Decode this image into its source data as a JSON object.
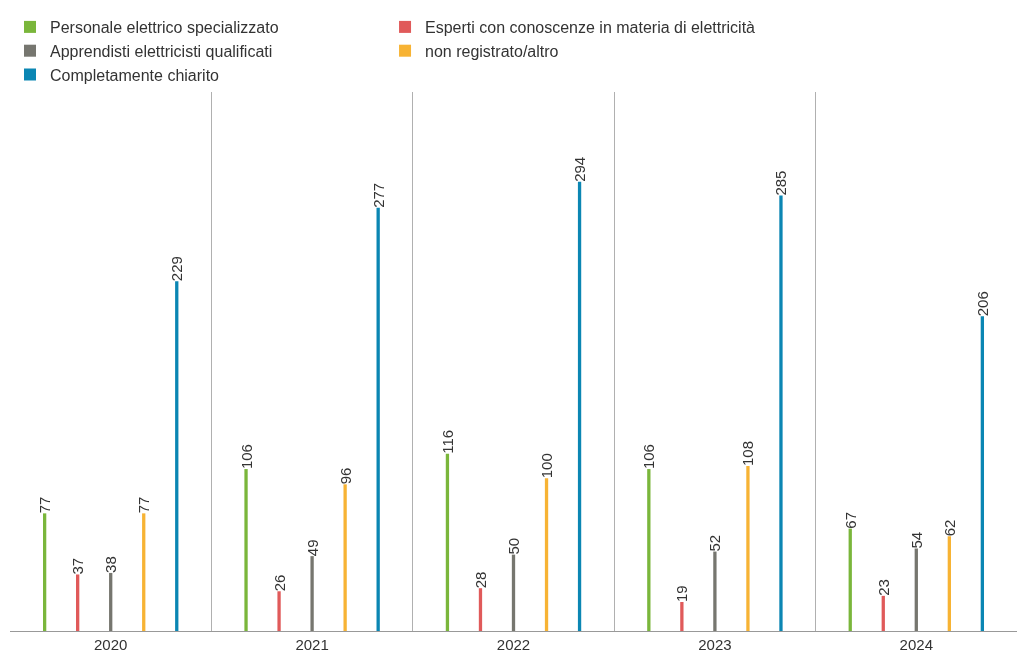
{
  "chart_data": {
    "type": "bar",
    "categories": [
      "2020",
      "2021",
      "2022",
      "2023",
      "2024"
    ],
    "series": [
      {
        "name": "Personale elettrico specializzato",
        "color": "#7ab63b",
        "values": [
          77,
          106,
          116,
          106,
          67
        ]
      },
      {
        "name": "Esperti con conoscenze in materia di elettricità",
        "color": "#e05a5a",
        "values": [
          37,
          26,
          28,
          19,
          23
        ]
      },
      {
        "name": "Apprendisti elettricisti qualificati",
        "color": "#76766f",
        "values": [
          38,
          49,
          50,
          52,
          54
        ]
      },
      {
        "name": "non registrato/altro",
        "color": "#f7b334",
        "values": [
          77,
          96,
          100,
          108,
          62
        ]
      },
      {
        "name": "Completamente chiarito",
        "color": "#0b86b3",
        "values": [
          229,
          277,
          294,
          285,
          206
        ]
      }
    ],
    "data_labels": true,
    "grid": "x",
    "legend": "top",
    "tick_labels": "x"
  }
}
